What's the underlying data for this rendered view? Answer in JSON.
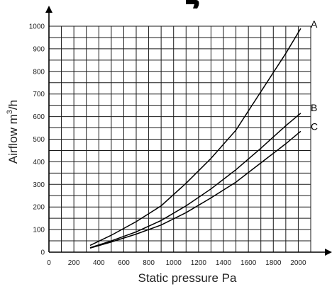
{
  "chart_data": {
    "type": "line",
    "xlabel": "Static pressure Pa",
    "ylabel_main": "Airflow m",
    "ylabel_sup": "3",
    "ylabel_tail": "/h",
    "xlim": [
      0,
      2100
    ],
    "ylim": [
      0,
      1000
    ],
    "x_ticks": [
      0,
      200,
      400,
      600,
      800,
      1000,
      1200,
      1400,
      1600,
      1800,
      2000
    ],
    "y_ticks": [
      0,
      100,
      200,
      300,
      400,
      500,
      600,
      700,
      800,
      900,
      1000
    ],
    "grid": true,
    "series": [
      {
        "name": "A",
        "x": [
          330,
          500,
          700,
          900,
          1100,
          1300,
          1500,
          1700,
          1900,
          2020
        ],
        "y": [
          30,
          75,
          135,
          205,
          305,
          415,
          540,
          710,
          880,
          990
        ]
      },
      {
        "name": "B",
        "x": [
          330,
          500,
          700,
          900,
          1100,
          1300,
          1500,
          1700,
          1900,
          2020
        ],
        "y": [
          20,
          50,
          90,
          140,
          205,
          280,
          365,
          460,
          560,
          615
        ]
      },
      {
        "name": "C",
        "x": [
          330,
          500,
          700,
          900,
          1100,
          1300,
          1500,
          1700,
          1900,
          2020
        ],
        "y": [
          18,
          45,
          80,
          120,
          175,
          240,
          310,
          395,
          480,
          535
        ]
      }
    ]
  }
}
